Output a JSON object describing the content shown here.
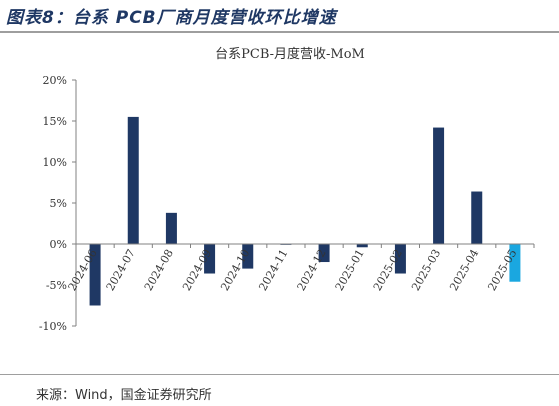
{
  "figure_title": "图表8：台系 PCB厂商月度营收环比增速",
  "source_text": "来源：Wind，国金证券研究所",
  "chart_data": {
    "type": "bar",
    "title": "台系PCB-月度营收-MoM",
    "xlabel": "",
    "ylabel": "",
    "categories": [
      "2024-06",
      "2024-07",
      "2024-08",
      "2024-09",
      "2024-10",
      "2024-11",
      "2024-12",
      "2025-01",
      "2025-02",
      "2025-03",
      "2025-04",
      "2025-05"
    ],
    "values": [
      -7.5,
      15.5,
      3.8,
      -3.6,
      -3.0,
      -0.1,
      -2.2,
      -0.4,
      -3.6,
      14.2,
      6.4,
      -4.6
    ],
    "highlight_index": 11,
    "ylim": [
      -10,
      20
    ],
    "yticks": [
      -10,
      -5,
      0,
      5,
      10,
      15,
      20
    ],
    "ytick_labels": [
      "-10%",
      "-5%",
      "0%",
      "5%",
      "10%",
      "15%",
      "20%"
    ],
    "grid": false,
    "colors": {
      "bar": "#1f3864",
      "highlight": "#1aa7e0",
      "axis": "#808080"
    }
  }
}
